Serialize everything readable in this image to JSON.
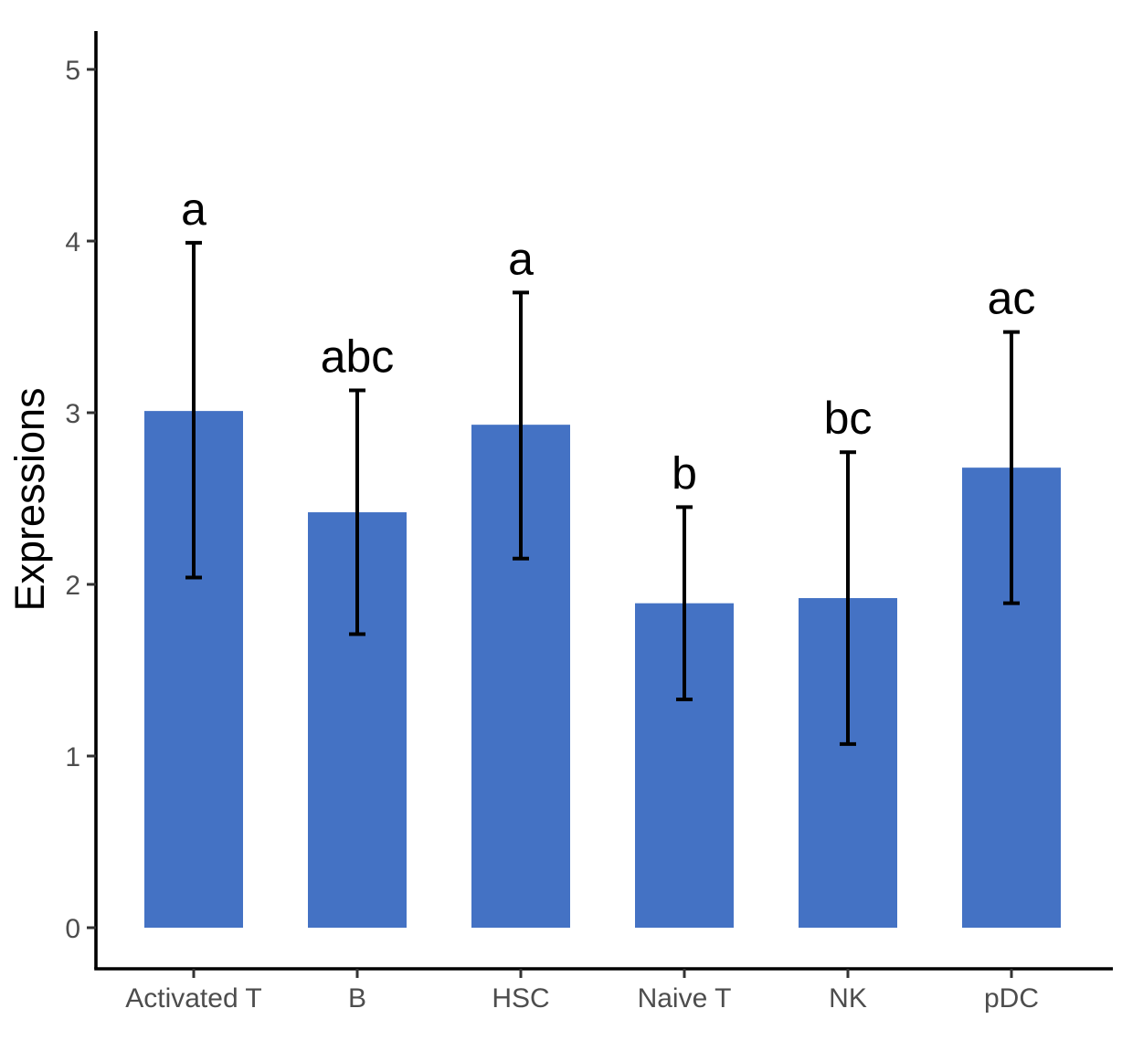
{
  "chart_data": {
    "type": "bar",
    "title": "",
    "xlabel": "",
    "ylabel": "Expressions",
    "ylim": [
      0,
      5
    ],
    "yticks": [
      0,
      1,
      2,
      3,
      4,
      5
    ],
    "categories": [
      "Activated T",
      "B",
      "HSC",
      "Naive T",
      "NK",
      "pDC"
    ],
    "values": [
      3.01,
      2.42,
      2.93,
      1.89,
      1.92,
      2.68
    ],
    "error_lower": [
      2.04,
      1.71,
      2.15,
      1.33,
      1.07,
      1.89
    ],
    "error_upper": [
      3.99,
      3.13,
      3.7,
      2.45,
      2.77,
      3.47
    ],
    "significance_labels": [
      "a",
      "abc",
      "a",
      "b",
      "bc",
      "ac"
    ],
    "bar_color": "#4472C4",
    "grid": false,
    "legend": "none"
  }
}
